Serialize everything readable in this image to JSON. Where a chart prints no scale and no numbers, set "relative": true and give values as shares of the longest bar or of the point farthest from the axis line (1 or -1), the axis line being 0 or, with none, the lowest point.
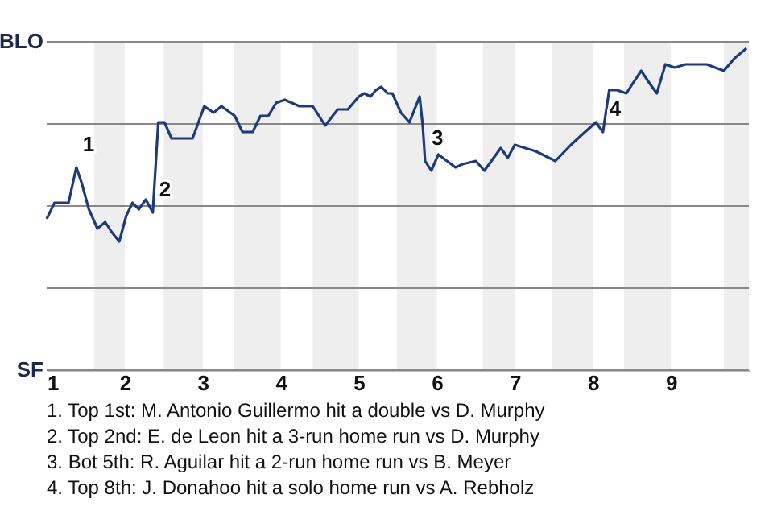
{
  "chart_data": {
    "type": "line",
    "relative": true,
    "x": [
      1.0,
      1.1,
      1.28,
      1.38,
      1.45,
      1.54,
      1.65,
      1.75,
      1.83,
      1.93,
      2.02,
      2.1,
      2.18,
      2.27,
      2.36,
      2.43,
      2.51,
      2.6,
      2.87,
      3.02,
      3.14,
      3.24,
      3.41,
      3.51,
      3.64,
      3.74,
      3.84,
      3.94,
      4.05,
      4.24,
      4.41,
      4.57,
      4.73,
      4.86,
      5.0,
      5.07,
      5.15,
      5.22,
      5.29,
      5.37,
      5.43,
      5.54,
      5.65,
      5.78,
      5.82,
      5.85,
      5.93,
      6.02,
      6.24,
      6.33,
      6.5,
      6.61,
      6.73,
      6.82,
      6.91,
      7.0,
      7.27,
      7.52,
      7.72,
      7.9,
      8.04,
      8.13,
      8.21,
      8.31,
      8.43,
      8.51,
      8.62,
      8.73,
      8.82,
      8.93,
      9.05,
      9.19,
      9.46,
      9.68,
      9.82,
      9.97
    ],
    "series": [
      {
        "color": "#1f3a7a",
        "values": [
          0.47,
          0.52,
          0.52,
          0.63,
          0.58,
          0.5,
          0.44,
          0.46,
          0.43,
          0.4,
          0.48,
          0.52,
          0.5,
          0.53,
          0.49,
          0.77,
          0.77,
          0.72,
          0.72,
          0.82,
          0.8,
          0.82,
          0.79,
          0.74,
          0.74,
          0.79,
          0.79,
          0.83,
          0.84,
          0.82,
          0.82,
          0.76,
          0.81,
          0.81,
          0.85,
          0.86,
          0.85,
          0.87,
          0.88,
          0.86,
          0.86,
          0.8,
          0.77,
          0.85,
          0.76,
          0.65,
          0.62,
          0.67,
          0.63,
          0.64,
          0.65,
          0.62,
          0.66,
          0.69,
          0.66,
          0.7,
          0.68,
          0.65,
          0.7,
          0.74,
          0.77,
          0.74,
          0.87,
          0.87,
          0.86,
          0.89,
          0.93,
          0.89,
          0.86,
          0.95,
          0.94,
          0.95,
          0.95,
          0.93,
          0.97,
          1.0
        ]
      }
    ],
    "xlim": [
      1,
      10
    ],
    "xticks": [
      1,
      2,
      3,
      4,
      5,
      6,
      7,
      8,
      9
    ],
    "ref_lines": [
      {
        "axis": "y",
        "value": 0,
        "label": "SF",
        "color": "#888888"
      },
      {
        "axis": "y",
        "value": 0.255,
        "label": null,
        "color": "#888888"
      },
      {
        "axis": "y",
        "value": 0.51,
        "label": null,
        "color": "#888888"
      },
      {
        "axis": "y",
        "value": 0.765,
        "label": null,
        "color": "#888888"
      },
      {
        "axis": "y",
        "value": 1.02,
        "label": "BLO",
        "color": "#888888"
      }
    ],
    "bands": [
      {
        "axis": "x",
        "from": 1.61,
        "to": 2,
        "color": "#eeeeee"
      },
      {
        "axis": "x",
        "from": 2.5,
        "to": 3,
        "color": "#eeeeee"
      },
      {
        "axis": "x",
        "from": 3.4,
        "to": 4,
        "color": "#eeeeee"
      },
      {
        "axis": "x",
        "from": 4.41,
        "to": 5,
        "color": "#eeeeee"
      },
      {
        "axis": "x",
        "from": 5.49,
        "to": 6,
        "color": "#eeeeee"
      },
      {
        "axis": "x",
        "from": 6.59,
        "to": 7,
        "color": "#eeeeee"
      },
      {
        "axis": "x",
        "from": 7.48,
        "to": 8,
        "color": "#eeeeee"
      },
      {
        "axis": "x",
        "from": 8.4,
        "to": 9,
        "color": "#eeeeee"
      },
      {
        "axis": "x",
        "from": 9.68,
        "to": 10,
        "color": "#eeeeee"
      }
    ],
    "annotations": [
      {
        "text": "1",
        "x": 1.38,
        "y": 0.63
      },
      {
        "text": "2",
        "x": 2.36,
        "y": 0.49
      },
      {
        "text": "3",
        "x": 5.85,
        "y": 0.65
      },
      {
        "text": "4",
        "x": 8.13,
        "y": 0.74
      },
      "1. Top 1st: M. Antonio Guillermo hit a double vs D. Murphy",
      "2. Top 2nd: E. de Leon hit a 3-run home run vs D. Murphy",
      "3. Bot 5th: R. Aguilar hit a 2-run home run vs B. Meyer",
      "4. Top 8th: J. Donahoo hit a solo home run vs A. Rebholz"
    ]
  }
}
